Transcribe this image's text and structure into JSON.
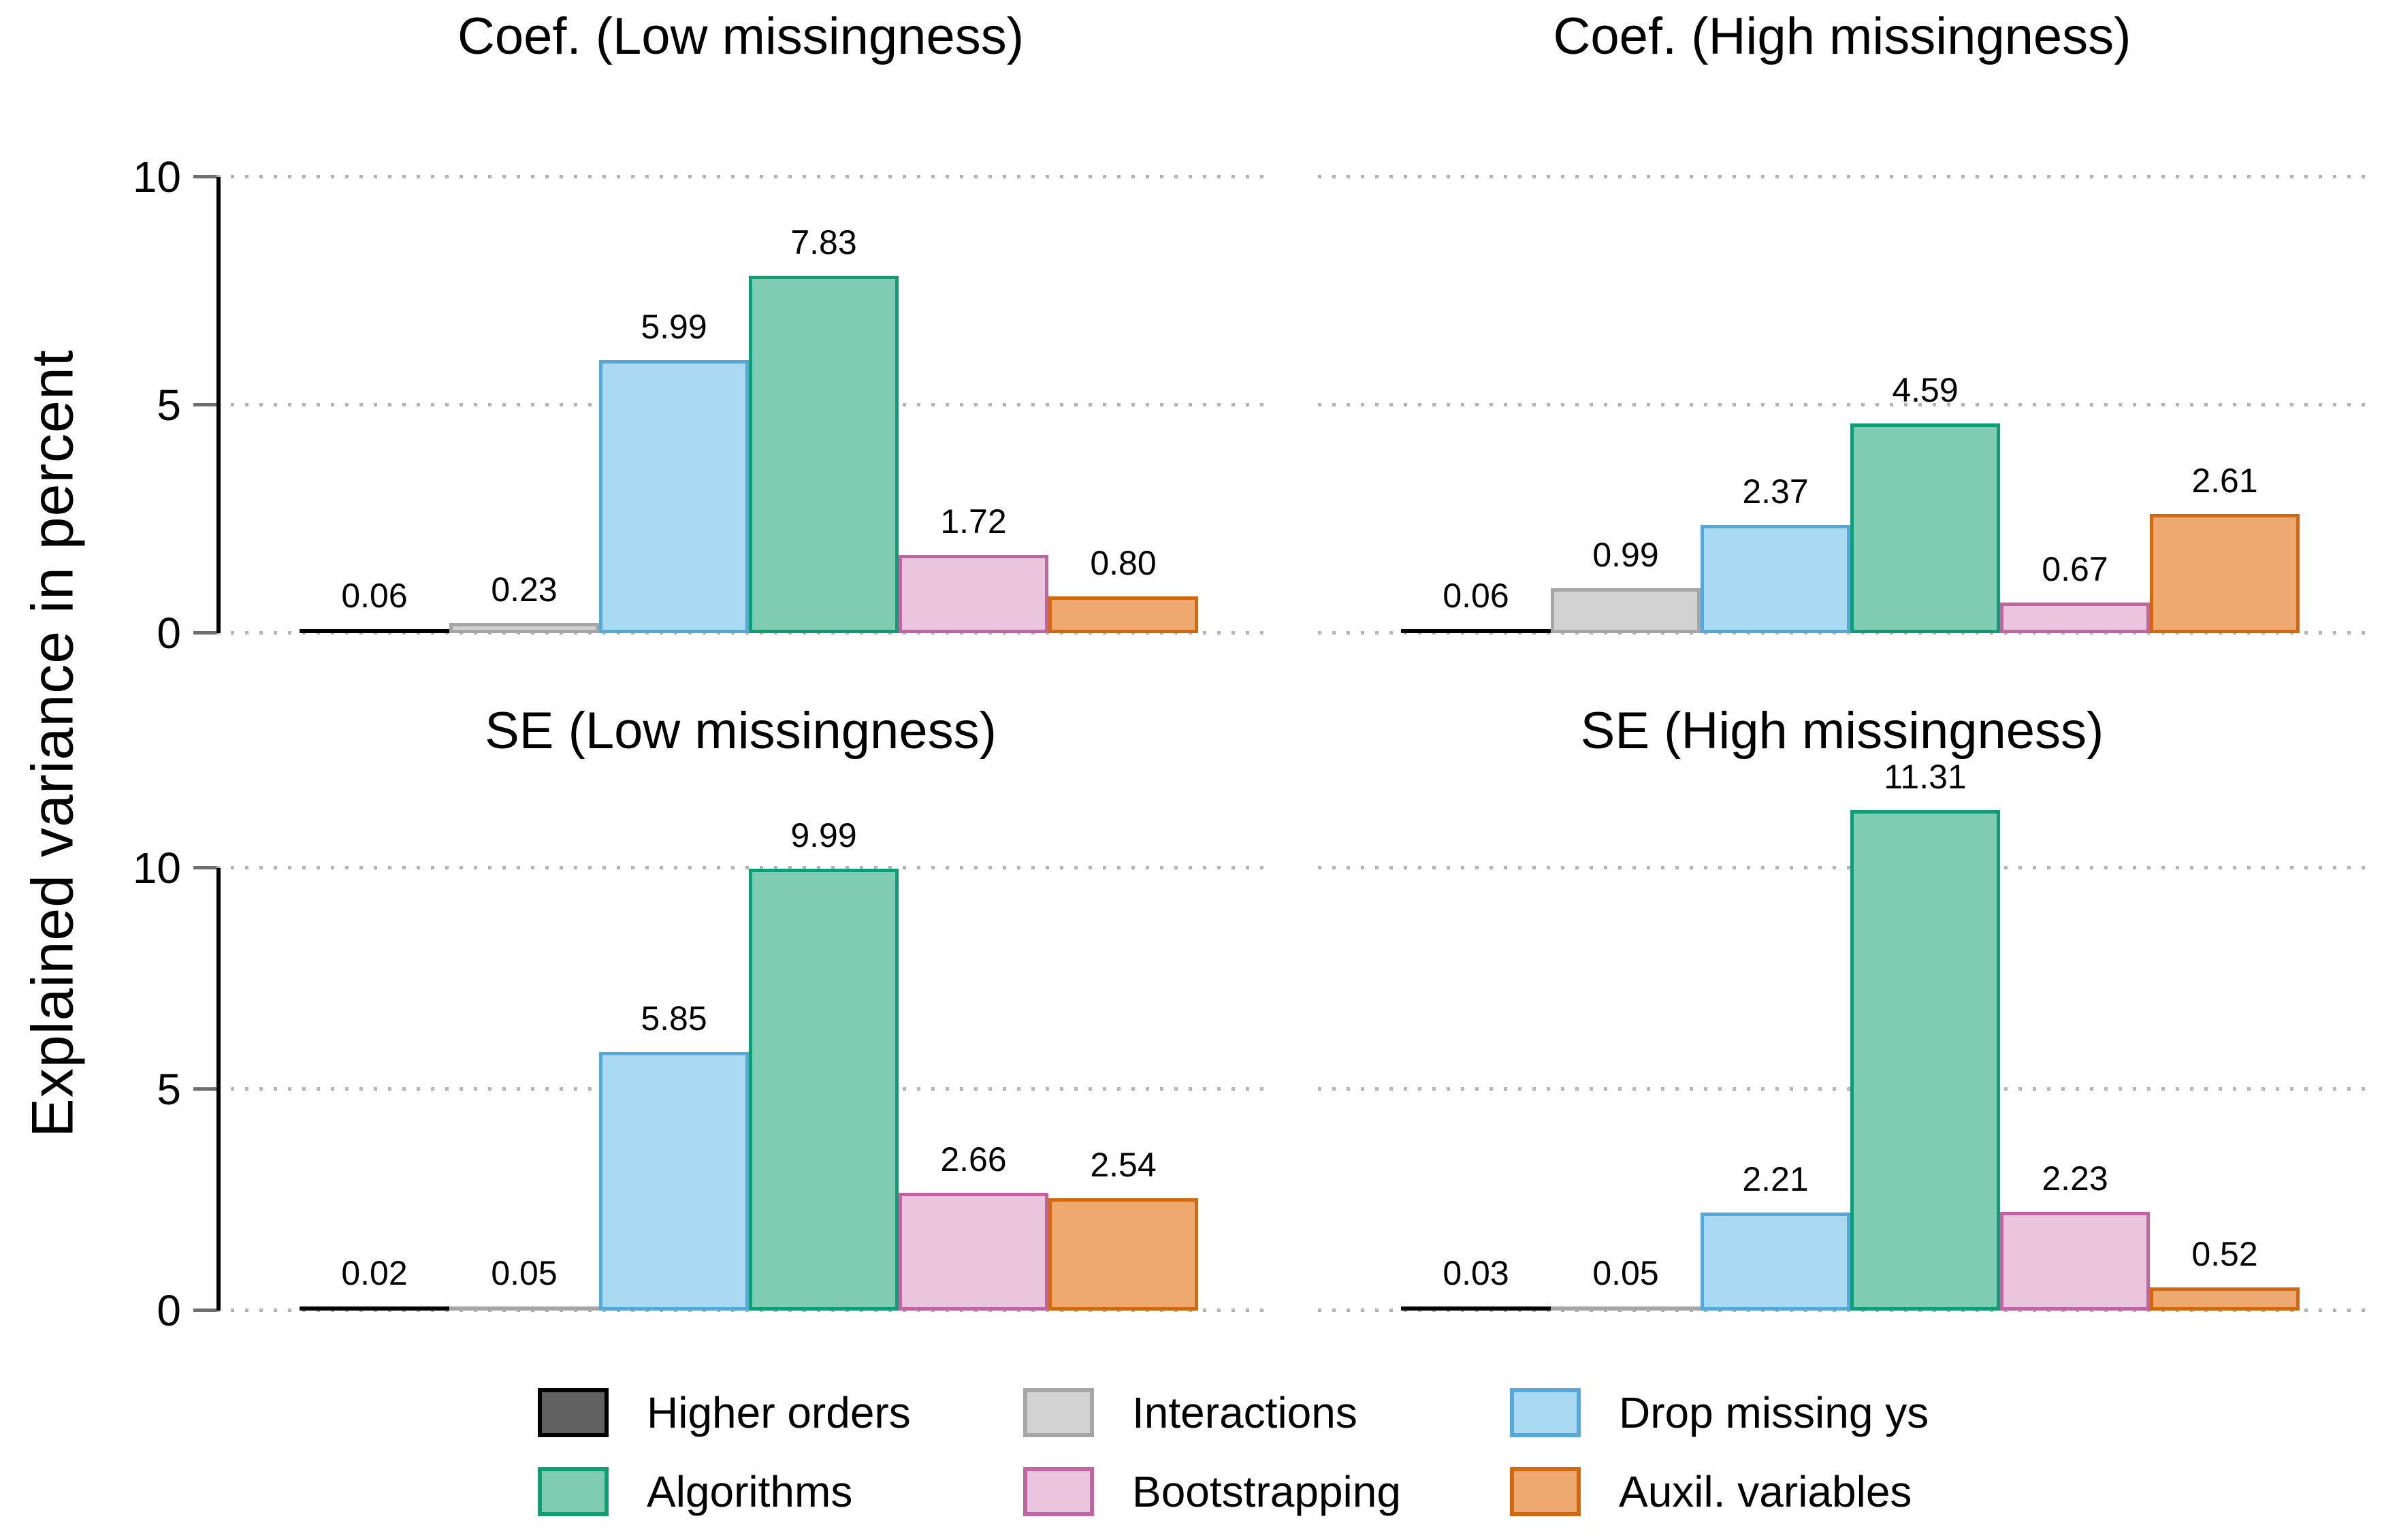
{
  "figure": {
    "ylabel": "Explained variance in percent"
  },
  "chart_data": [
    {
      "type": "bar",
      "title": "Coef. (Low missingness)",
      "categories": [
        "Higher orders",
        "Interactions",
        "Drop missing ys",
        "Algorithms",
        "Bootstrapping",
        "Auxil. variables"
      ],
      "values": [
        0.06,
        0.23,
        5.99,
        7.83,
        1.72,
        0.8
      ],
      "value_labels": [
        "0.06",
        "0.23",
        "5.99",
        "7.83",
        "1.72",
        "0.80"
      ],
      "ylabel": "Explained variance in percent",
      "ylim": [
        0,
        10
      ],
      "yticks": [
        0,
        5,
        10
      ],
      "y_axis_labels_visible": true,
      "grid": "dotted horizontal"
    },
    {
      "type": "bar",
      "title": "Coef. (High missingness)",
      "categories": [
        "Higher orders",
        "Interactions",
        "Drop missing ys",
        "Algorithms",
        "Bootstrapping",
        "Auxil. variables"
      ],
      "values": [
        0.06,
        0.99,
        2.37,
        4.59,
        0.67,
        2.61
      ],
      "value_labels": [
        "0.06",
        "0.99",
        "2.37",
        "4.59",
        "0.67",
        "2.61"
      ],
      "ylabel": "Explained variance in percent",
      "ylim": [
        0,
        10
      ],
      "yticks": [
        0,
        5,
        10
      ],
      "y_axis_labels_visible": false,
      "grid": "dotted horizontal"
    },
    {
      "type": "bar",
      "title": "SE (Low missingness)",
      "categories": [
        "Higher orders",
        "Interactions",
        "Drop missing ys",
        "Algorithms",
        "Bootstrapping",
        "Auxil. variables"
      ],
      "values": [
        0.02,
        0.05,
        5.85,
        9.99,
        2.66,
        2.54
      ],
      "value_labels": [
        "0.02",
        "0.05",
        "5.85",
        "9.99",
        "2.66",
        "2.54"
      ],
      "ylabel": "Explained variance in percent",
      "ylim": [
        0,
        10
      ],
      "yticks": [
        0,
        5,
        10
      ],
      "y_axis_labels_visible": true,
      "grid": "dotted horizontal"
    },
    {
      "type": "bar",
      "title": "SE (High missingness)",
      "categories": [
        "Higher orders",
        "Interactions",
        "Drop missing ys",
        "Algorithms",
        "Bootstrapping",
        "Auxil. variables"
      ],
      "values": [
        0.03,
        0.05,
        2.21,
        11.31,
        2.23,
        0.52
      ],
      "value_labels": [
        "0.03",
        "0.05",
        "2.21",
        "11.31",
        "2.23",
        "0.52"
      ],
      "ylabel": "Explained variance in percent",
      "ylim": [
        0,
        10
      ],
      "yticks": [
        0,
        5,
        10
      ],
      "y_axis_labels_visible": false,
      "grid": "dotted horizontal"
    }
  ],
  "legend": {
    "position": "bottom",
    "items": [
      {
        "label": "Higher orders",
        "fill": "#616161",
        "border": "#000000"
      },
      {
        "label": "Interactions",
        "fill": "#d2d2d2",
        "border": "#a6a6a6"
      },
      {
        "label": "Drop missing ys",
        "fill": "#aadaf2",
        "border": "#55a9da"
      },
      {
        "label": "Algorithms",
        "fill": "#80ccb2",
        "border": "#0f9d76"
      },
      {
        "label": "Bootstrapping",
        "fill": "#e9c5de",
        "border": "#c263a2"
      },
      {
        "label": "Auxil. variables",
        "fill": "#eda970",
        "border": "#d2690f"
      }
    ]
  }
}
